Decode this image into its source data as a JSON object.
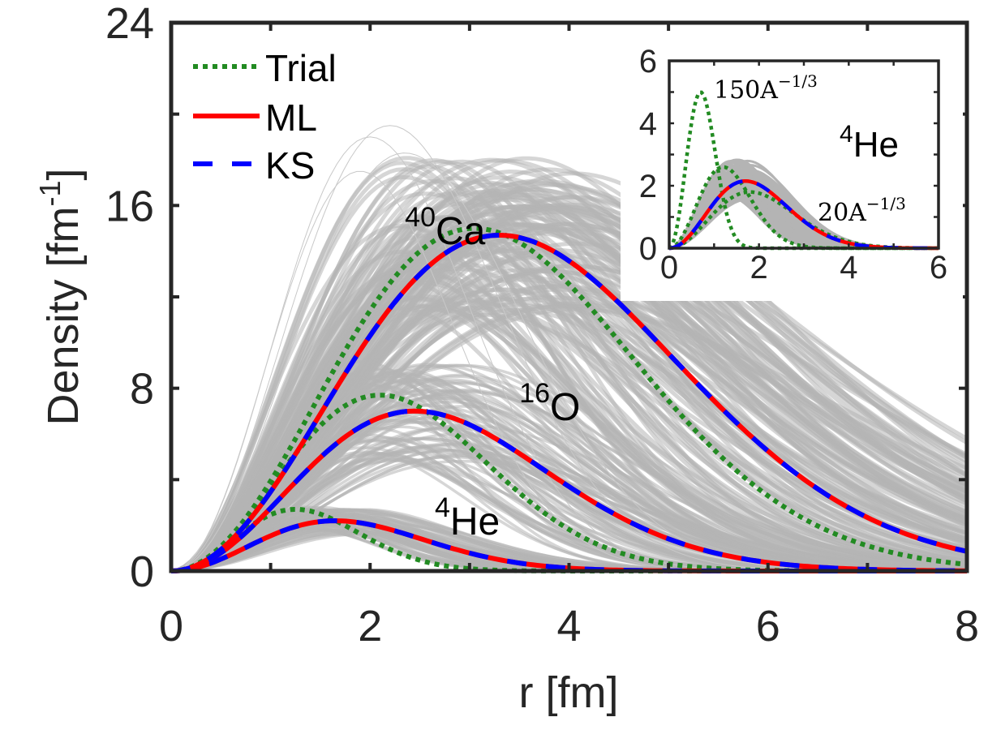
{
  "chart_data": {
    "type": "line",
    "title": "",
    "xlabel": "r [fm]",
    "ylabel": "Density [fm",
    "ylabel_sup": "-1",
    "ylabel_close": "]",
    "xlim": [
      0,
      8
    ],
    "ylim": [
      0,
      24
    ],
    "xticks": [
      0,
      2,
      4,
      6,
      8
    ],
    "xtick_labels": [
      "0",
      "2",
      "4",
      "6",
      "8"
    ],
    "yticks": [
      0,
      8,
      16,
      24
    ],
    "ytick_labels": [
      "0",
      "8",
      "16",
      "24"
    ],
    "grid": false,
    "legend": {
      "placement": "top-left",
      "entries": [
        {
          "label": "Trial",
          "color": "#228B22",
          "style": "dotted"
        },
        {
          "label": "ML",
          "color": "#FF0000",
          "style": "solid"
        },
        {
          "label": "KS",
          "color": "#0000FF",
          "style": "dashed"
        }
      ]
    },
    "colors": {
      "trial": "#228B22",
      "ml": "#FF0000",
      "ks": "#0000FF",
      "ensemble": "#B4B4B4",
      "axis": "#262626"
    },
    "series": [
      {
        "name": "ML/KS 4He",
        "nucleus": "4He",
        "peak_r": 1.65,
        "peak_density": 2.2
      },
      {
        "name": "ML/KS 16O",
        "nucleus": "16O",
        "peak_r": 2.45,
        "peak_density": 7.0
      },
      {
        "name": "ML/KS 40Ca",
        "nucleus": "40Ca",
        "peak_r": 3.3,
        "peak_density": 14.7
      },
      {
        "name": "Trial 4He",
        "nucleus": "4He",
        "peak_r": 1.25,
        "peak_density": 2.7
      },
      {
        "name": "Trial 16O",
        "nucleus": "16O",
        "peak_r": 2.1,
        "peak_density": 7.7
      },
      {
        "name": "Trial 40Ca",
        "nucleus": "40Ca",
        "peak_r": 3.05,
        "peak_density": 15.0
      }
    ],
    "ensemble_envelope": {
      "description": "grey band of sampled density curves",
      "max_values": [
        {
          "r": 2.2,
          "density": 19.5
        },
        {
          "r": 3.2,
          "density": 17.0
        }
      ],
      "value_at_r8": 1.4
    },
    "annotations": [
      {
        "mass": "40",
        "element": "Ca",
        "r": 2.35,
        "density": 14.3
      },
      {
        "mass": "16",
        "element": "O",
        "r": 3.5,
        "density": 6.6
      },
      {
        "mass": "4",
        "element": "He",
        "r": 2.65,
        "density": 1.6
      }
    ],
    "inset": {
      "xlim": [
        0,
        6
      ],
      "ylim": [
        0,
        6
      ],
      "xticks": [
        0,
        2,
        4,
        6
      ],
      "xtick_labels": [
        "0",
        "2",
        "4",
        "6"
      ],
      "yticks": [
        0,
        2,
        4,
        6
      ],
      "ytick_labels": [
        "0",
        "2",
        "4",
        "6"
      ],
      "nucleus_mass": "4",
      "nucleus_element": "He",
      "annotations": [
        {
          "text_base": "150A",
          "text_exp": "−1/3"
        },
        {
          "text_base": "20A",
          "text_exp": "−1/3"
        }
      ],
      "series": [
        {
          "name": "ML/KS 4He",
          "peak_r": 1.7,
          "peak_density": 2.15
        },
        {
          "name": "Trial 150A^-1/3",
          "peak_r": 0.7,
          "peak_density": 5.0
        },
        {
          "name": "Trial 20A^-1/3",
          "peak_r": 1.8,
          "peak_density": 1.8
        },
        {
          "name": "Trial 4He",
          "peak_r": 1.2,
          "peak_density": 2.6
        }
      ]
    }
  }
}
